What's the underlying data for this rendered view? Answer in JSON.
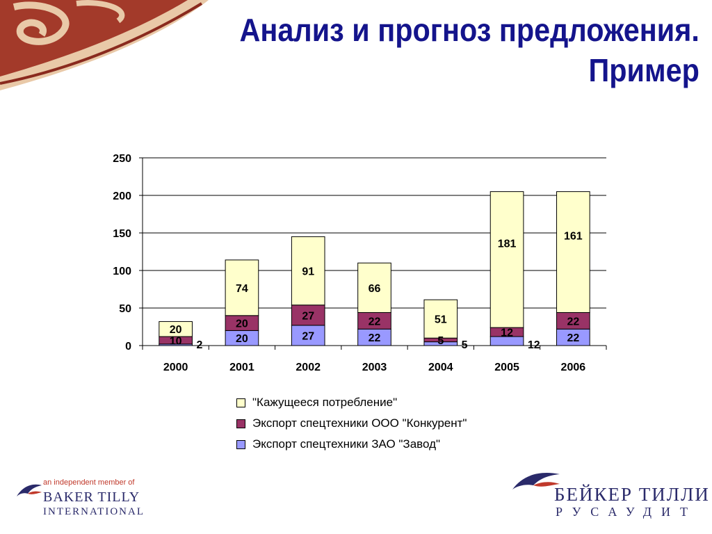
{
  "slide": {
    "title_line1": "Анализ и прогноз предложения.",
    "title_line2": "Пример"
  },
  "colors": {
    "title": "#14148c",
    "consumption": "#ffffcc",
    "competitor": "#993366",
    "plant": "#9999ff",
    "logo_red": "#c0392b",
    "logo_navy": "#2a2a6a"
  },
  "chart_data": {
    "type": "bar",
    "stacked": true,
    "categories": [
      "2000",
      "2001",
      "2002",
      "2003",
      "2004",
      "2005",
      "2006"
    ],
    "series": [
      {
        "name": "Экспорт спецтехники ЗАО \"Завод\"",
        "values": [
          2,
          20,
          27,
          22,
          5,
          12,
          22
        ]
      },
      {
        "name": "Экспорт спецтехники ООО \"Конкурент\"",
        "values": [
          10,
          20,
          27,
          22,
          5,
          12,
          22
        ]
      },
      {
        "name": "\"Кажущееся потребление\"",
        "values": [
          20,
          74,
          91,
          66,
          51,
          181,
          161
        ]
      }
    ],
    "ylim": [
      0,
      250
    ],
    "yticks": [
      "0",
      "50",
      "100",
      "150",
      "200",
      "250"
    ],
    "grid": true,
    "legend_position": "bottom"
  },
  "legend": [
    {
      "label": "\"Кажущееся потребление\"",
      "icon": "swatch-consumption"
    },
    {
      "label": "Экспорт спецтехники ООО \"Конкурент\"",
      "icon": "swatch-competitor"
    },
    {
      "label": "Экспорт спецтехники ЗАО \"Завод\"",
      "icon": "swatch-plant"
    }
  ],
  "logos": {
    "left_member": "an independent member of",
    "left_name": "BAKER TILLY",
    "left_sub": "INTERNATIONAL",
    "right_name": "БЕЙКЕР ТИЛЛИ",
    "right_sub": "РУСАУДИТ"
  }
}
